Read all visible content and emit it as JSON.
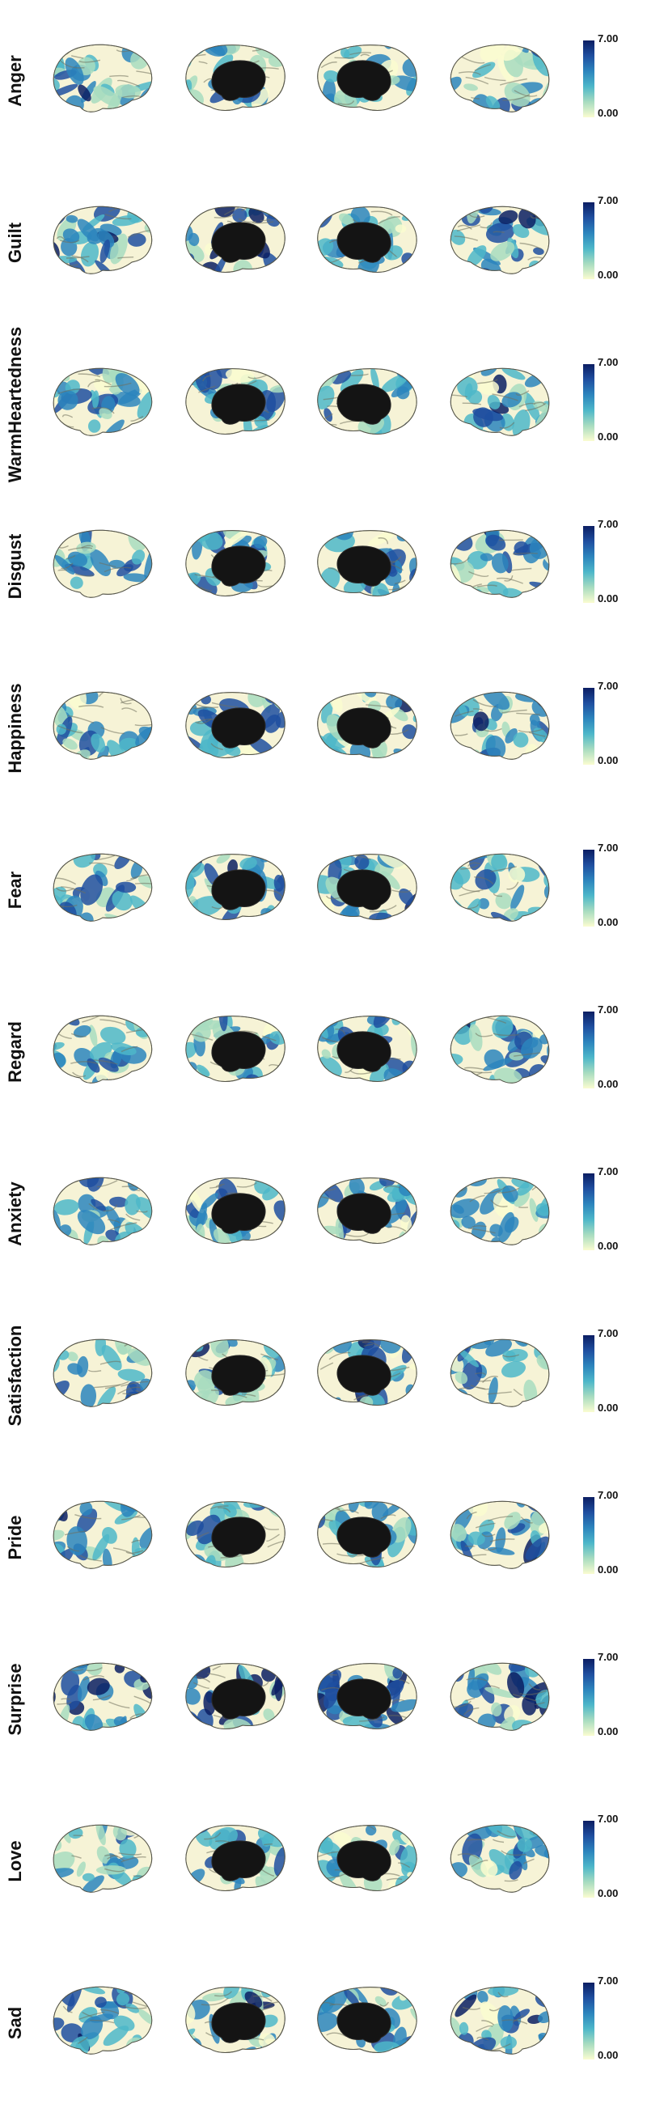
{
  "colorbar": {
    "max_label": "7.00",
    "min_label": "0.00",
    "colormap": [
      "#fafcd0",
      "#a8dcc0",
      "#4db7c9",
      "#2c85bd",
      "#1f4fa0",
      "#0b1e63"
    ]
  },
  "views": [
    "left-lateral",
    "left-medial",
    "right-medial",
    "right-lateral"
  ],
  "rows": [
    {
      "label": "Anger",
      "intensity": 0.25
    },
    {
      "label": "Guilt",
      "intensity": 0.45
    },
    {
      "label": "WarmHeartedness",
      "intensity": 0.35
    },
    {
      "label": "Disgust",
      "intensity": 0.4
    },
    {
      "label": "Happiness",
      "intensity": 0.35
    },
    {
      "label": "Fear",
      "intensity": 0.35
    },
    {
      "label": "Regard",
      "intensity": 0.4
    },
    {
      "label": "Anxiety",
      "intensity": 0.45
    },
    {
      "label": "Satisfaction",
      "intensity": 0.4
    },
    {
      "label": "Pride",
      "intensity": 0.35
    },
    {
      "label": "Surprise",
      "intensity": 0.7
    },
    {
      "label": "Love",
      "intensity": 0.25
    },
    {
      "label": "Sad",
      "intensity": 0.4
    }
  ]
}
